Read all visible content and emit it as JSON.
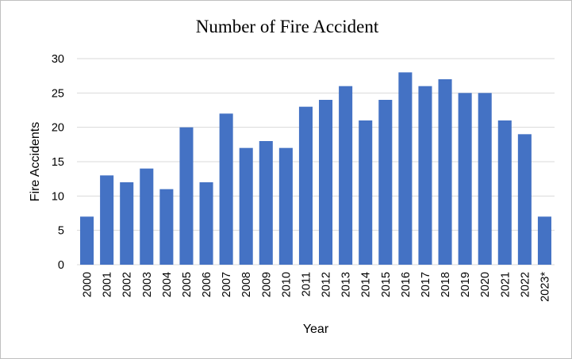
{
  "chart_data": {
    "type": "bar",
    "title": "Number of  Fire Accident",
    "xlabel": "Year",
    "ylabel": "Fire Accidents",
    "ylim": [
      0,
      30
    ],
    "yticks": [
      0,
      5,
      10,
      15,
      20,
      25,
      30
    ],
    "grid": true,
    "legend": "none",
    "bar_color": "#4472c4",
    "categories": [
      "2000",
      "2001",
      "2002",
      "2003",
      "2004",
      "2005",
      "2006",
      "2007",
      "2008",
      "2009",
      "2010",
      "2011",
      "2012",
      "2013",
      "2014",
      "2015",
      "2016",
      "2017",
      "2018",
      "2019",
      "2020",
      "2021",
      "2022",
      "2023*"
    ],
    "values": [
      7,
      13,
      12,
      14,
      11,
      20,
      12,
      22,
      17,
      18,
      17,
      23,
      24,
      26,
      21,
      24,
      28,
      26,
      27,
      25,
      25,
      21,
      19,
      7
    ]
  }
}
